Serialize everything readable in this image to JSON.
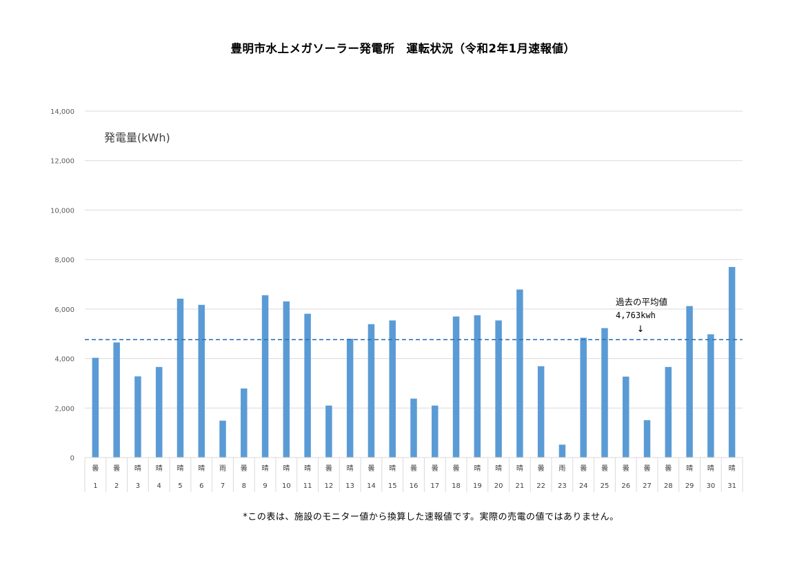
{
  "title": "豊明市水上メガソーラー発電所　運転状況（令和2年1月速報値）",
  "footnote": "*この表は、施設のモニター値から換算した速報値です。実際の売電の値ではありません。",
  "colors": {
    "bar": "#5b9bd5",
    "average_line": "#2e75b6",
    "grid": "#d9d9d9",
    "text": "#595959"
  },
  "chart_data": {
    "type": "bar",
    "ylabel": "発電量(kWh)",
    "ylim": [
      0,
      14000
    ],
    "yticks": [
      0,
      2000,
      4000,
      6000,
      8000,
      10000,
      12000,
      14000
    ],
    "ytick_labels": [
      "0",
      "2,000",
      "4,000",
      "6,000",
      "8,000",
      "10,000",
      "12,000",
      "14,000"
    ],
    "grid": true,
    "categories": [
      "1",
      "2",
      "3",
      "4",
      "5",
      "6",
      "7",
      "8",
      "9",
      "10",
      "11",
      "12",
      "13",
      "14",
      "15",
      "16",
      "17",
      "18",
      "19",
      "20",
      "21",
      "22",
      "23",
      "24",
      "25",
      "26",
      "27",
      "28",
      "29",
      "30",
      "31"
    ],
    "weather": [
      "曇",
      "曇",
      "晴",
      "晴",
      "晴",
      "晴",
      "雨",
      "曇",
      "晴",
      "晴",
      "晴",
      "曇",
      "晴",
      "曇",
      "晴",
      "曇",
      "曇",
      "曇",
      "晴",
      "晴",
      "晴",
      "曇",
      "雨",
      "曇",
      "曇",
      "曇",
      "曇",
      "曇",
      "晴",
      "晴",
      "晴"
    ],
    "values": [
      4030,
      4650,
      3280,
      3660,
      6420,
      6170,
      1490,
      2790,
      6560,
      6310,
      5810,
      2100,
      4800,
      5390,
      5540,
      2380,
      2100,
      5700,
      5750,
      5540,
      6790,
      3690,
      520,
      4840,
      5230,
      3270,
      1510,
      3660,
      6120,
      4980,
      7700
    ],
    "average": {
      "value": 4763,
      "label_line1": "過去の平均値",
      "label_line2": "4,763kwh",
      "arrow": "↓"
    }
  }
}
